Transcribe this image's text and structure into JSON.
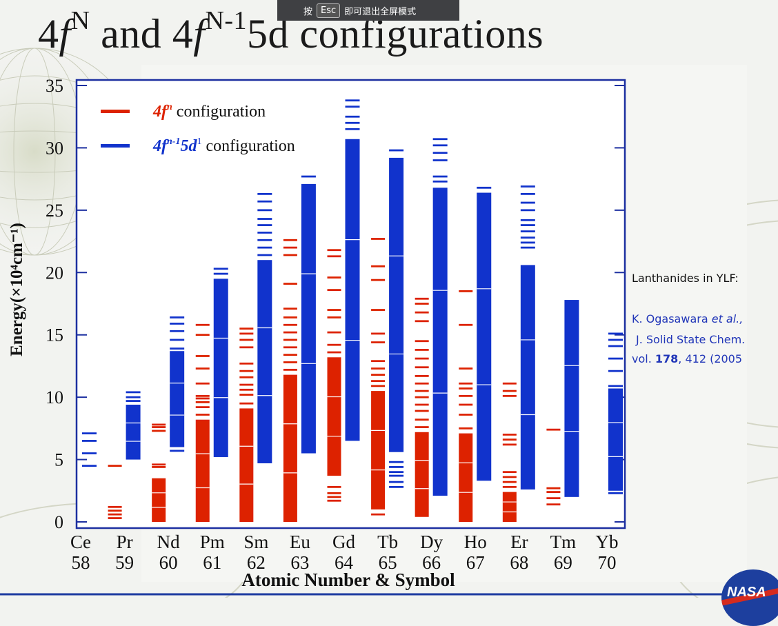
{
  "overlay": {
    "prefix": "按",
    "key": "Esc",
    "suffix": "即可退出全屏模式"
  },
  "slide": {
    "title_parts": [
      "4",
      "f",
      "N",
      " and 4",
      "f",
      "N-1",
      "5d configurations"
    ]
  },
  "side_note": {
    "heading": "Lanthanides in YLF:",
    "line1": "K. Ogasawara et al.,",
    "line2": "J. Solid State Chem.",
    "line3": "vol. 178, 412 (2005"
  },
  "logo_text": "NASA",
  "colors": {
    "fN": "#dd2200",
    "fN1": "#1133cc",
    "frame": "#1c2fa0"
  },
  "chart_data": {
    "type": "bar",
    "ylabel": "Energy(×10⁴cm⁻¹)",
    "xlabel": "Atomic Number & Symbol",
    "ylim": [
      0,
      35
    ],
    "yticks": [
      0,
      5,
      10,
      15,
      20,
      25,
      30,
      35
    ],
    "legend": [
      {
        "label_math": "4f",
        "sup": "n",
        "text": " configuration",
        "color": "#dd2200"
      },
      {
        "label_math": "4f",
        "sup": "n-1",
        "label_math2": "5d",
        "sup2": "1",
        "text": " configuration",
        "color": "#1133cc"
      }
    ],
    "legend_position": "top-left",
    "elements": [
      {
        "symbol": "Ce",
        "z": "58",
        "fN": [],
        "fN1": {
          "lines": [
            4.5,
            5.5,
            6.5,
            7.1
          ]
        }
      },
      {
        "symbol": "Pr",
        "z": "59",
        "fN": {
          "lines": [
            0.3,
            0.6,
            0.9,
            1.2,
            4.5
          ]
        },
        "fN1": {
          "band": [
            5.0,
            9.4
          ],
          "lines": [
            9.7,
            10.0,
            10.4
          ]
        }
      },
      {
        "symbol": "Nd",
        "z": "60",
        "fN": {
          "band": [
            0.0,
            3.5
          ],
          "lines": [
            4.4,
            4.6,
            7.3,
            7.6,
            7.8
          ]
        },
        "fN1": {
          "band": [
            6.0,
            13.7
          ],
          "lines": [
            5.7,
            13.9,
            14.6,
            15.3,
            15.9,
            16.4
          ]
        }
      },
      {
        "symbol": "Pm",
        "z": "61",
        "fN": {
          "band": [
            0.0,
            8.2
          ],
          "lines": [
            8.6,
            9.2,
            9.6,
            9.9,
            10.1,
            11.1,
            12.3,
            13.3,
            15.0,
            15.8
          ]
        },
        "fN1": {
          "band": [
            5.2,
            19.5
          ],
          "lines": [
            19.9,
            20.3
          ]
        }
      },
      {
        "symbol": "Sm",
        "z": "62",
        "fN": {
          "band": [
            0.0,
            9.1
          ],
          "lines": [
            9.5,
            10.2,
            10.6,
            11.0,
            11.6,
            12.1,
            12.7,
            14.0,
            14.6,
            15.1,
            15.5
          ]
        },
        "fN1": {
          "band": [
            4.7,
            21.0
          ],
          "lines": [
            21.4,
            22.0,
            22.6,
            23.2,
            23.8,
            24.3,
            25.0,
            25.7,
            26.3
          ]
        }
      },
      {
        "symbol": "Eu",
        "z": "63",
        "fN": {
          "band": [
            0.0,
            11.8
          ],
          "lines": [
            12.2,
            12.8,
            13.4,
            14.0,
            14.6,
            15.2,
            15.8,
            16.4,
            17.1,
            19.1,
            21.4,
            22.0,
            22.6
          ]
        },
        "fN1": {
          "band": [
            5.5,
            27.1
          ],
          "lines": [
            27.7
          ]
        }
      },
      {
        "symbol": "Gd",
        "z": "64",
        "fN": {
          "band": [
            3.7,
            13.2
          ],
          "lines": [
            1.7,
            2.0,
            2.3,
            2.8,
            13.6,
            14.2,
            15.2,
            16.4,
            17.0,
            18.6,
            19.6,
            21.3,
            21.8
          ]
        },
        "fN1": {
          "band": [
            6.5,
            30.7
          ],
          "lines": [
            31.5,
            32.0,
            32.5,
            33.3,
            33.8
          ]
        }
      },
      {
        "symbol": "Tb",
        "z": "65",
        "fN": {
          "band": [
            1.0,
            10.5
          ],
          "lines": [
            0.6,
            10.9,
            11.3,
            11.8,
            12.3,
            12.9,
            14.4,
            15.1,
            17.0,
            19.4,
            20.5,
            22.7
          ]
        },
        "fN1": {
          "band": [
            5.6,
            29.2
          ],
          "lines": [
            2.8,
            3.2,
            3.7,
            4.0,
            4.4,
            4.8,
            29.8
          ]
        }
      },
      {
        "symbol": "Dy",
        "z": "66",
        "fN": {
          "band": [
            0.4,
            7.2
          ],
          "lines": [
            7.6,
            8.2,
            8.9,
            9.4,
            10.0,
            10.5,
            11.1,
            11.7,
            12.4,
            13.1,
            13.8,
            14.5,
            16.1,
            16.8,
            17.5,
            17.9
          ]
        },
        "fN1": {
          "band": [
            2.1,
            26.8
          ],
          "lines": [
            27.3,
            27.7,
            29.0,
            29.6,
            30.2,
            30.7
          ]
        }
      },
      {
        "symbol": "Ho",
        "z": "67",
        "fN": {
          "band": [
            0.0,
            7.1
          ],
          "lines": [
            7.5,
            8.6,
            9.4,
            10.1,
            10.7,
            11.1,
            12.3,
            15.8,
            18.5
          ]
        },
        "fN1": {
          "band": [
            3.3,
            26.4
          ],
          "lines": [
            26.8
          ]
        }
      },
      {
        "symbol": "Er",
        "z": "68",
        "fN": {
          "band": [
            0.0,
            2.4
          ],
          "lines": [
            2.8,
            3.2,
            3.6,
            4.0,
            6.2,
            6.6,
            7.0,
            10.1,
            10.5,
            11.1
          ]
        },
        "fN1": {
          "band": [
            2.6,
            20.6
          ],
          "lines": [
            22.0,
            22.4,
            22.8,
            23.3,
            23.8,
            24.2,
            25.0,
            25.6,
            26.3,
            26.9
          ]
        }
      },
      {
        "symbol": "Tm",
        "z": "69",
        "fN": {
          "lines": [
            1.4,
            1.9,
            2.4,
            2.7,
            7.4
          ]
        },
        "fN1": {
          "band": [
            2.0,
            17.8
          ],
          "lines": []
        }
      },
      {
        "symbol": "Yb",
        "z": "70",
        "fN": [],
        "fN1": {
          "band": [
            2.5,
            10.7
          ],
          "lines": [
            2.3,
            10.9,
            12.1,
            13.1,
            14.1,
            14.6,
            15.1
          ]
        }
      }
    ]
  }
}
